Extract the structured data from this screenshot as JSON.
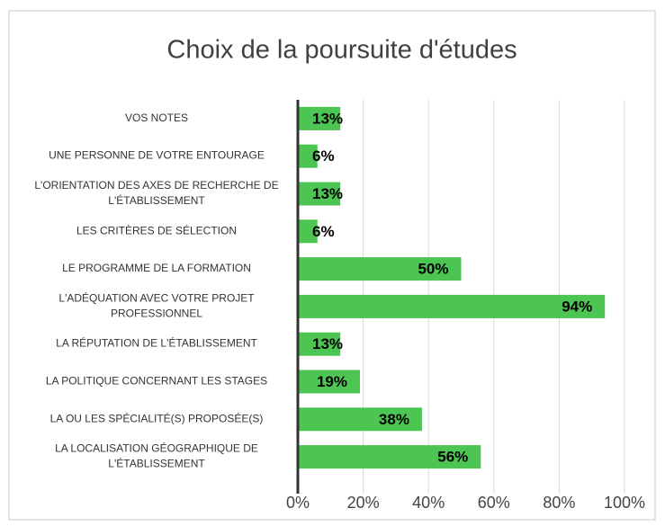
{
  "chart_data": {
    "type": "bar",
    "orientation": "horizontal",
    "title": "Choix de la poursuite d'études",
    "categories": [
      "VOS NOTES",
      "UNE PERSONNE DE VOTRE ENTOURAGE",
      "L'ORIENTATION DES AXES DE RECHERCHE DE L'ÉTABLISSEMENT",
      "LES CRITÈRES DE SÉLECTION",
      "LE PROGRAMME DE LA FORMATION",
      "L'ADÉQUATION AVEC VOTRE PROJET PROFESSIONNEL",
      "LA RÉPUTATION DE L'ÉTABLISSEMENT",
      "LA POLITIQUE CONCERNANT LES STAGES",
      "LA OU LES SPÉCIALITÉ(S) PROPOSÉE(S)",
      "LA LOCALISATION GÉOGRAPHIQUE DE L'ÉTABLISSEMENT"
    ],
    "values": [
      13,
      6,
      13,
      6,
      50,
      94,
      13,
      19,
      38,
      56
    ],
    "value_labels": [
      "13%",
      "6%",
      "13%",
      "6%",
      "50%",
      "94%",
      "13%",
      "19%",
      "38%",
      "56%"
    ],
    "color": "#4cc552",
    "xlim": [
      0,
      100
    ],
    "xticks": [
      {
        "value": 0,
        "label": "0%"
      },
      {
        "value": 20,
        "label": "20%"
      },
      {
        "value": 40,
        "label": "40%"
      },
      {
        "value": 60,
        "label": "60%"
      },
      {
        "value": 80,
        "label": "80%"
      },
      {
        "value": 100,
        "label": "100%"
      }
    ],
    "grid": true
  }
}
